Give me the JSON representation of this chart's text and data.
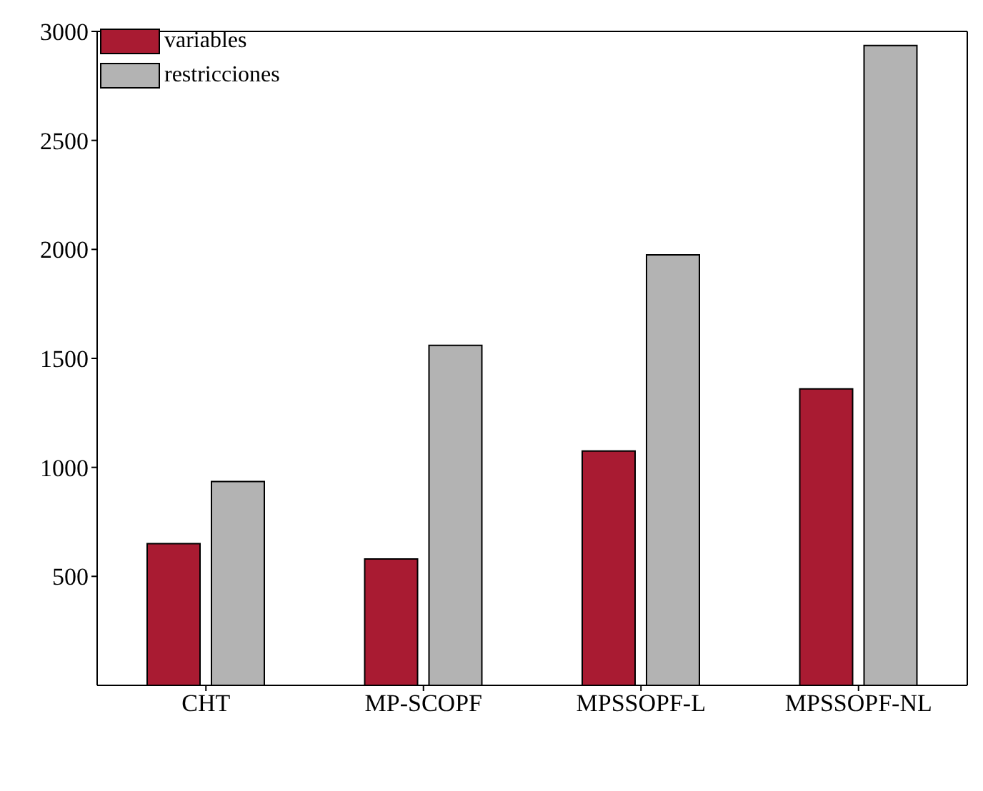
{
  "chart_data": {
    "type": "bar",
    "categories": [
      "CHT",
      "MP-SCOPF",
      "MPSSOPF-L",
      "MPSSOPF-NL"
    ],
    "series": [
      {
        "name": "variables",
        "color": "#a91b32",
        "values": [
          650,
          580,
          1075,
          1360
        ]
      },
      {
        "name": "restricciones",
        "color": "#b3b3b3",
        "values": [
          935,
          1560,
          1975,
          2935
        ]
      }
    ],
    "ylim": [
      0,
      3000
    ],
    "yticks": [
      500,
      1000,
      1500,
      2000,
      2500,
      3000
    ],
    "legend": "top left"
  }
}
